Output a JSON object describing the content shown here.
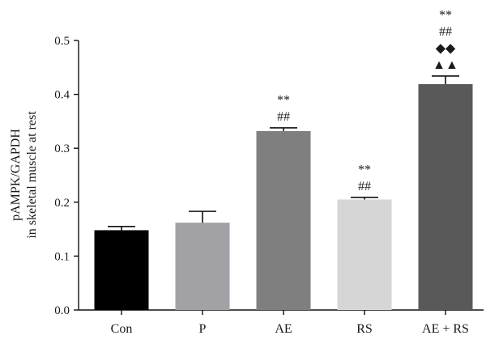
{
  "chart_data": {
    "type": "bar",
    "categories": [
      "Con",
      "P",
      "AE",
      "RS",
      "AE + RS"
    ],
    "values": [
      0.148,
      0.162,
      0.332,
      0.205,
      0.419
    ],
    "errors": [
      0.007,
      0.021,
      0.006,
      0.004,
      0.015
    ],
    "colors": [
      "#000000",
      "#a1a1a6",
      "#7f7f7f",
      "#d6d6d6",
      "#595959"
    ],
    "annotations": [
      [],
      [],
      [
        "**",
        "##"
      ],
      [
        "**",
        "##"
      ],
      [
        "**",
        "##",
        "◆◆",
        "▲▲"
      ]
    ],
    "ylabel_lines": [
      "pAMPK/GAPDH",
      "in skeletal muscle at rest"
    ],
    "xlabel": "",
    "ylim": [
      0,
      0.5
    ],
    "yticks": [
      0.0,
      0.1,
      0.2,
      0.3,
      0.4,
      0.5
    ],
    "ytick_labels": [
      "0.0",
      "0.1",
      "0.2",
      "0.3",
      "0.4",
      "0.5"
    ],
    "grid": false,
    "legend": "none"
  }
}
